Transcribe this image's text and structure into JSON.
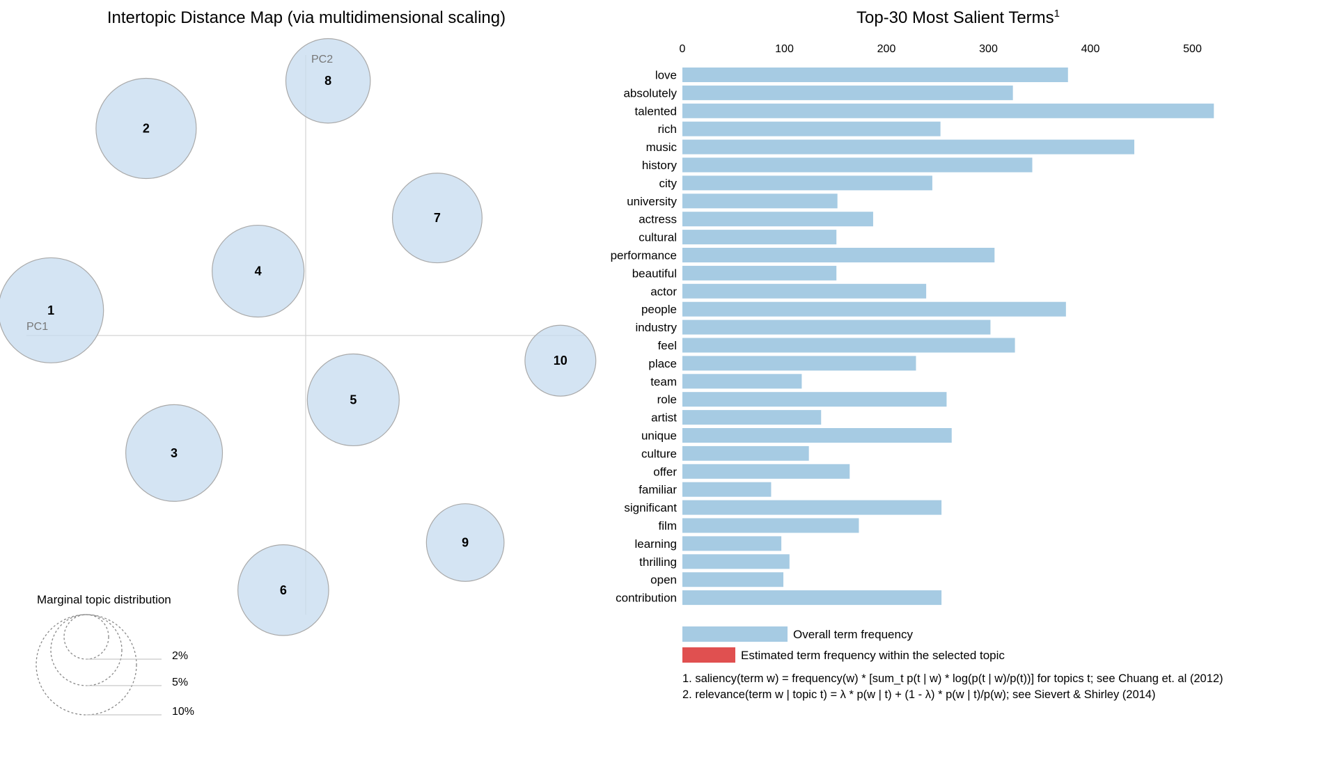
{
  "left_panel": {
    "title": "Intertopic Distance Map (via multidimensional scaling)",
    "pc1_label": "PC1",
    "pc2_label": "PC2",
    "size_legend": {
      "title": "Marginal topic distribution",
      "labels": [
        "2%",
        "5%",
        "10%"
      ]
    }
  },
  "right_panel": {
    "title": "Top-30 Most Salient Terms",
    "title_sup": "1",
    "legend": {
      "overall": "Overall term frequency",
      "estimated": "Estimated term frequency within the selected topic"
    },
    "footnotes": [
      "1. saliency(term w) = frequency(w) * [sum_t p(t | w) * log(p(t | w)/p(t))] for topics t; see Chuang et. al (2012)",
      "2. relevance(term w | topic t) = λ * p(w | t) + (1 - λ) * p(w | t)/p(w); see Sievert & Shirley (2014)"
    ]
  },
  "colors": {
    "bar_overall": "#a6cbe3",
    "bar_estimated": "#e05050",
    "circle_fill": "#c6dbef",
    "circle_stroke": "#a9a9a9"
  },
  "chart_data": [
    {
      "type": "scatter",
      "title": "Intertopic Distance Map (via multidimensional scaling)",
      "xlabel": "PC1",
      "ylabel": "PC2",
      "xlim": [
        -1,
        1
      ],
      "ylim": [
        -1,
        1
      ],
      "grid": false,
      "topics": [
        {
          "label": "1",
          "x": -0.91,
          "y": 0.09,
          "size_pct": 11.0
        },
        {
          "label": "2",
          "x": -0.57,
          "y": 0.74,
          "size_pct": 10.0
        },
        {
          "label": "3",
          "x": -0.47,
          "y": -0.42,
          "size_pct": 9.3
        },
        {
          "label": "4",
          "x": -0.17,
          "y": 0.23,
          "size_pct": 8.4
        },
        {
          "label": "5",
          "x": 0.17,
          "y": -0.23,
          "size_pct": 8.4
        },
        {
          "label": "6",
          "x": -0.08,
          "y": -0.91,
          "size_pct": 8.2
        },
        {
          "label": "7",
          "x": 0.47,
          "y": 0.42,
          "size_pct": 8.0
        },
        {
          "label": "8",
          "x": 0.08,
          "y": 0.91,
          "size_pct": 7.1
        },
        {
          "label": "9",
          "x": 0.57,
          "y": -0.74,
          "size_pct": 6.0
        },
        {
          "label": "10",
          "x": 0.91,
          "y": -0.09,
          "size_pct": 5.0
        }
      ]
    },
    {
      "type": "bar",
      "orientation": "horizontal",
      "title": "Top-30 Most Salient Terms",
      "xlim": [
        0,
        540
      ],
      "x_ticks": [
        0,
        100,
        200,
        300,
        400,
        500
      ],
      "categories": [
        "love",
        "absolutely",
        "talented",
        "rich",
        "music",
        "history",
        "city",
        "university",
        "actress",
        "cultural",
        "performance",
        "beautiful",
        "actor",
        "people",
        "industry",
        "feel",
        "place",
        "team",
        "role",
        "artist",
        "unique",
        "culture",
        "offer",
        "familiar",
        "significant",
        "film",
        "learning",
        "thrilling",
        "open",
        "contribution"
      ],
      "series": [
        {
          "name": "Overall term frequency",
          "values": [
            378,
            324,
            521,
            253,
            443,
            343,
            245,
            152,
            187,
            151,
            306,
            151,
            239,
            376,
            302,
            326,
            229,
            117,
            259,
            136,
            264,
            124,
            164,
            87,
            254,
            173,
            97,
            105,
            99,
            254
          ]
        }
      ],
      "legend": "bottom",
      "grid": false
    }
  ]
}
